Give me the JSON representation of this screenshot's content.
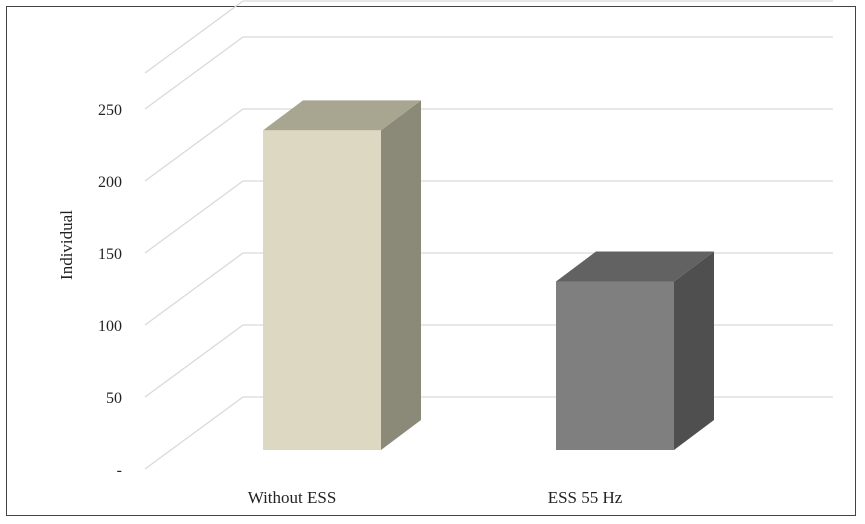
{
  "chart_data": {
    "type": "bar",
    "title": "",
    "xlabel": "",
    "ylabel": "Individual",
    "categories": [
      "Without ESS",
      "ESS 55 Hz"
    ],
    "values": [
      222,
      117
    ],
    "ylim": [
      0,
      275
    ],
    "yticks": [
      0,
      50,
      100,
      150,
      200,
      250
    ],
    "ytick_labels": [
      "-",
      "50",
      "100",
      "150",
      "200",
      "250"
    ],
    "grid": true,
    "three_d": true,
    "legend": "none",
    "colors": {
      "bars": [
        {
          "front": "#ddd8c2",
          "side": "#8b8a78",
          "top": "#a8a690"
        },
        {
          "front": "#7f7f7f",
          "side": "#4f4f4f",
          "top": "#626262"
        }
      ],
      "grid": "#d9d9d9"
    }
  }
}
